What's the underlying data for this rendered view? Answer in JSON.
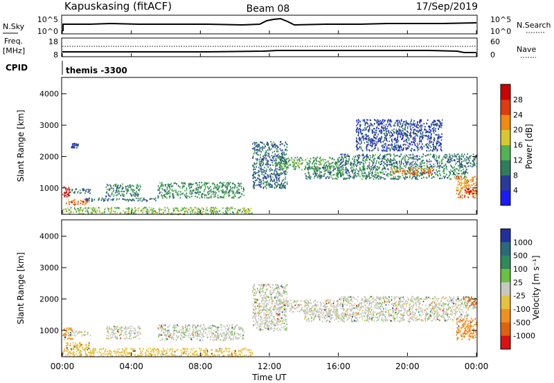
{
  "header": {
    "station": "Kapuskasing (fitACF)",
    "beam": "Beam 08",
    "date": "17/Sep/2019"
  },
  "sky_panel": {
    "left_label": "N.Sky",
    "left_ticks": [
      "10^5",
      "10^0"
    ],
    "right_ticks": [
      "10^5",
      "10^0"
    ],
    "right_label": "N.Search"
  },
  "freq_panel": {
    "left_label_line1": "Freq.",
    "left_label_line2": "[MHz]",
    "left_ticks": [
      "18",
      "8"
    ],
    "right_ticks": [
      "60",
      "0"
    ],
    "right_label": "Nave"
  },
  "cpid_panel": {
    "label": "CPID",
    "program": "themis -3300"
  },
  "axes": {
    "ylabel": "Slant Range [km]",
    "xlabel": "Time UT",
    "y_ticks": [
      "1000",
      "2000",
      "3000",
      "4000"
    ],
    "x_ticks": [
      "00:00",
      "04:00",
      "08:00",
      "12:00",
      "16:00",
      "20:00",
      "00:00"
    ]
  },
  "colorbars": {
    "power": {
      "label": "Power [dB]",
      "ticks": [
        "4",
        "8",
        "12",
        "16",
        "20",
        "24",
        "28"
      ],
      "colors": [
        "#1a1aff",
        "#2a3a9a",
        "#2f7d5d",
        "#52b352",
        "#d8c830",
        "#f08a10",
        "#e03a10",
        "#cc0000"
      ]
    },
    "velocity": {
      "label": "Velocity [m s⁻¹]",
      "ticks": [
        "1000",
        "500",
        "100",
        "25",
        "-25",
        "-100",
        "-500",
        "-1000"
      ],
      "colors": [
        "#2030a0",
        "#2a6a7a",
        "#2e8a5a",
        "#6ac040",
        "#c8c8c0",
        "#e8c040",
        "#f09020",
        "#e06010",
        "#dd1010"
      ]
    }
  },
  "chart_data": [
    {
      "type": "heatmap",
      "title": "Power",
      "xlabel": "Time UT",
      "ylabel": "Slant Range [km]",
      "xlim": [
        "00:00",
        "24:00"
      ],
      "ylim": [
        180,
        4500
      ],
      "zlim": [
        0,
        30
      ],
      "zlabel": "Power [dB]",
      "echo_regions": [
        {
          "t0": 0.0,
          "t1": 0.4,
          "r0": 700,
          "r1": 1100,
          "z": 27
        },
        {
          "t0": 0.2,
          "t1": 1.6,
          "r0": 480,
          "r1": 650,
          "z": 22
        },
        {
          "t0": 0.4,
          "t1": 1.6,
          "r0": 850,
          "r1": 1000,
          "z": 8
        },
        {
          "t0": 0.5,
          "t1": 0.9,
          "r0": 2300,
          "r1": 2450,
          "z": 6
        },
        {
          "t0": 2.5,
          "t1": 4.5,
          "r0": 750,
          "r1": 1150,
          "z": 10
        },
        {
          "t0": 1.2,
          "t1": 5.5,
          "r0": 600,
          "r1": 700,
          "z": 8
        },
        {
          "t0": 5.5,
          "t1": 10.5,
          "r0": 700,
          "r1": 1200,
          "z": 11
        },
        {
          "t0": 0.0,
          "t1": 11.0,
          "r0": 180,
          "r1": 400,
          "z": 14
        },
        {
          "t0": 11.0,
          "t1": 13.0,
          "r0": 1000,
          "r1": 2500,
          "z": 8
        },
        {
          "t0": 12.5,
          "t1": 16.0,
          "r0": 1600,
          "r1": 2000,
          "z": 12
        },
        {
          "t0": 14.0,
          "t1": 23.5,
          "r0": 1300,
          "r1": 1700,
          "z": 10
        },
        {
          "t0": 16.0,
          "t1": 24.0,
          "r0": 1700,
          "r1": 2100,
          "z": 9
        },
        {
          "t0": 19.0,
          "t1": 21.5,
          "r0": 1450,
          "r1": 1650,
          "z": 21
        },
        {
          "t0": 22.8,
          "t1": 24.0,
          "r0": 700,
          "r1": 1400,
          "z": 20
        },
        {
          "t0": 23.3,
          "t1": 24.0,
          "r0": 800,
          "r1": 1000,
          "z": 27
        },
        {
          "t0": 17.0,
          "t1": 22.0,
          "r0": 2200,
          "r1": 3200,
          "z": 6
        }
      ]
    },
    {
      "type": "heatmap",
      "title": "Velocity",
      "xlabel": "Time UT",
      "ylabel": "Slant Range [km]",
      "xlim": [
        "00:00",
        "24:00"
      ],
      "ylim": [
        180,
        4500
      ],
      "zlim": [
        -1000,
        1000
      ],
      "zlabel": "Velocity [m s-1]",
      "echo_regions": [
        {
          "t0": 0.0,
          "t1": 0.6,
          "r0": 700,
          "r1": 1100,
          "z": -120
        },
        {
          "t0": 0.2,
          "t1": 1.6,
          "r0": 420,
          "r1": 650,
          "z": -80
        },
        {
          "t0": 0.4,
          "t1": 1.6,
          "r0": 850,
          "r1": 1000,
          "z": 0
        },
        {
          "t0": 2.5,
          "t1": 4.5,
          "r0": 750,
          "r1": 1150,
          "z": 0
        },
        {
          "t0": 5.5,
          "t1": 10.5,
          "r0": 700,
          "r1": 1200,
          "z": 5
        },
        {
          "t0": 0.0,
          "t1": 11.0,
          "r0": 180,
          "r1": 450,
          "z": -60
        },
        {
          "t0": 11.0,
          "t1": 13.0,
          "r0": 1000,
          "r1": 2500,
          "z": 0
        },
        {
          "t0": 12.5,
          "t1": 16.0,
          "r0": 1600,
          "r1": 2000,
          "z": 0
        },
        {
          "t0": 14.0,
          "t1": 23.5,
          "r0": 1300,
          "r1": 1700,
          "z": 0
        },
        {
          "t0": 16.0,
          "t1": 24.0,
          "r0": 1700,
          "r1": 2100,
          "z": 0
        },
        {
          "t0": 22.8,
          "t1": 24.0,
          "r0": 700,
          "r1": 1400,
          "z": -450
        },
        {
          "t0": 23.2,
          "t1": 24.0,
          "r0": 1800,
          "r1": 2100,
          "z": -800
        }
      ]
    }
  ]
}
